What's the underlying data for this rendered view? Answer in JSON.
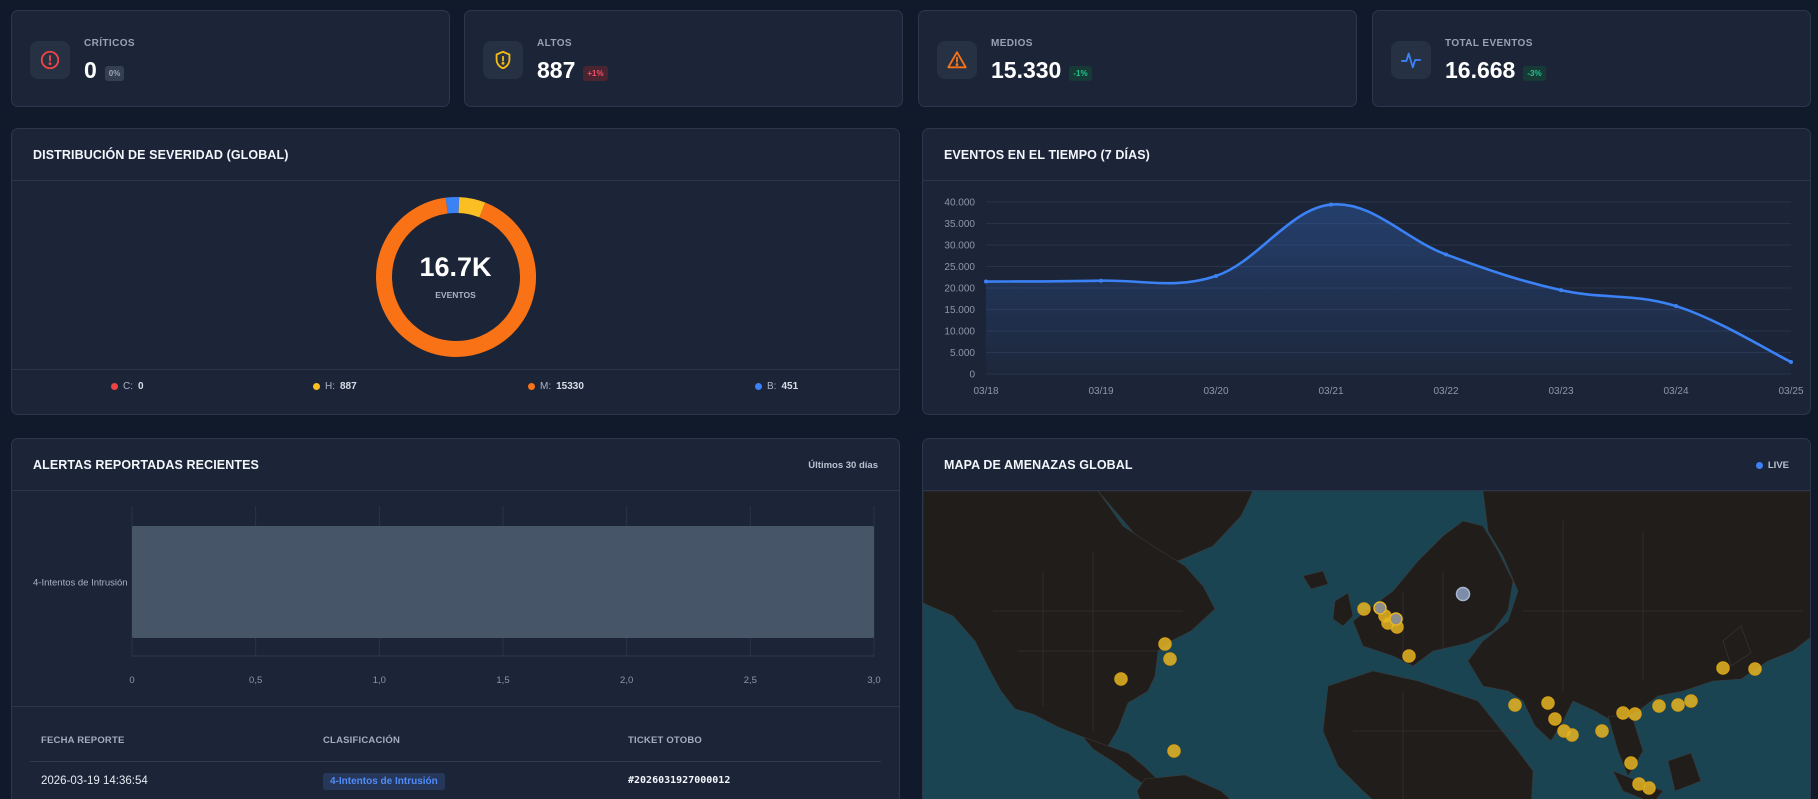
{
  "stats": [
    {
      "label": "CRÍTICOS",
      "value": "0",
      "change": "0%",
      "trend": "neutral",
      "icon": "alert-circle-icon",
      "color": "#ef4444"
    },
    {
      "label": "ALTOS",
      "value": "887",
      "change": "+1%",
      "trend": "up",
      "icon": "shield-alert-icon",
      "color": "#f5b915"
    },
    {
      "label": "MEDIOS",
      "value": "15.330",
      "change": "-1%",
      "trend": "down",
      "icon": "warning-triangle-icon",
      "color": "#f97316"
    },
    {
      "label": "TOTAL EVENTOS",
      "value": "16.668",
      "change": "-3%",
      "trend": "down",
      "icon": "activity-pulse-icon",
      "color": "#3b82f6"
    }
  ],
  "severity_panel": {
    "title": "DISTRIBUCIÓN DE SEVERIDAD (GLOBAL)",
    "center_value": "16.7K",
    "center_label": "EVENTOS",
    "legend": [
      {
        "key": "C:",
        "value": "0",
        "color": "#ef4444"
      },
      {
        "key": "H:",
        "value": "887",
        "color": "#fbbf24"
      },
      {
        "key": "M:",
        "value": "15330",
        "color": "#f97316"
      },
      {
        "key": "B:",
        "value": "451",
        "color": "#3b82f6"
      }
    ]
  },
  "timeline_panel": {
    "title": "EVENTOS EN EL TIEMPO (7 DÍAS)"
  },
  "alerts_panel": {
    "title": "ALERTAS REPORTADAS RECIENTES",
    "period": "Últimos 30 días",
    "columns": [
      "FECHA REPORTE",
      "CLASIFICACIÓN",
      "TICKET OTOBO"
    ],
    "rows": [
      {
        "date": "2026-03-19 14:36:54",
        "classification": "4-Intentos de Intrusión",
        "ticket": "#2026031927000012"
      }
    ]
  },
  "map_panel": {
    "title": "MAPA DE AMENAZAS GLOBAL",
    "live_label": "LIVE"
  },
  "chart_data": [
    {
      "type": "pie",
      "title": "DISTRIBUCIÓN DE SEVERIDAD (GLOBAL)",
      "categories": [
        "C",
        "H",
        "M",
        "B"
      ],
      "values": [
        0,
        887,
        15330,
        451
      ],
      "colors": [
        "#ef4444",
        "#fbbf24",
        "#f97316",
        "#3b82f6"
      ],
      "donut": true
    },
    {
      "type": "area",
      "title": "EVENTOS EN EL TIEMPO (7 DÍAS)",
      "categories": [
        "03/18",
        "03/19",
        "03/20",
        "03/21",
        "03/22",
        "03/23",
        "03/24",
        "03/25"
      ],
      "values": [
        21500,
        21700,
        22800,
        39400,
        27800,
        19500,
        15800,
        2800
      ],
      "ylim": [
        0,
        40000
      ],
      "yticks": [
        "40.000",
        "35.000",
        "30.000",
        "25.000",
        "20.000",
        "15.000",
        "10.000",
        "5.000",
        "0"
      ],
      "color": "#3b82f6",
      "grid": true
    },
    {
      "type": "bar",
      "orientation": "horizontal",
      "categories": [
        "4-Intentos de Intrusión"
      ],
      "values": [
        3
      ],
      "xlim": [
        0,
        3
      ],
      "xticks": [
        "0",
        "0,5",
        "1,0",
        "1,5",
        "2,0",
        "2,5",
        "3,0"
      ],
      "color": "#475569",
      "grid": true
    }
  ]
}
